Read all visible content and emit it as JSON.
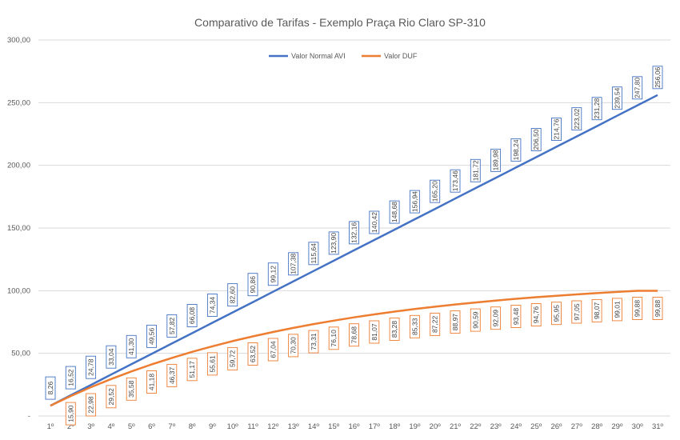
{
  "chart_data": {
    "type": "line",
    "title": "Comparativo de Tarifas - Exemplo Praça Rio Claro SP-310",
    "xlabel": "",
    "ylabel": "",
    "categories": [
      "1º",
      "2º",
      "3º",
      "4º",
      "5º",
      "6º",
      "7º",
      "8º",
      "9º",
      "10º",
      "11º",
      "12º",
      "13º",
      "14º",
      "15º",
      "16º",
      "17º",
      "18º",
      "19º",
      "20º",
      "21º",
      "22º",
      "23º",
      "24º",
      "25º",
      "26º",
      "27º",
      "28º",
      "29º",
      "30º",
      "31º"
    ],
    "ylim": [
      0,
      300
    ],
    "yticks": [
      0,
      50,
      100,
      150,
      200,
      250,
      300
    ],
    "ytick_labels": [
      "-",
      "50,00",
      "100,00",
      "150,00",
      "200,00",
      "250,00",
      "300,00"
    ],
    "grid": true,
    "legend_position": "top-center",
    "series": [
      {
        "name": "Valor Normal AVI",
        "color": "#4472C4",
        "values": [
          8.26,
          16.52,
          24.78,
          33.04,
          41.3,
          49.56,
          57.82,
          66.08,
          74.34,
          82.6,
          90.86,
          99.12,
          107.38,
          115.64,
          123.9,
          132.16,
          140.42,
          148.68,
          156.94,
          165.2,
          173.46,
          181.72,
          189.98,
          198.24,
          206.5,
          214.76,
          223.02,
          231.28,
          239.54,
          247.8,
          256.06
        ],
        "labels": [
          "8,26",
          "16,52",
          "24,78",
          "33,04",
          "41,30",
          "49,56",
          "57,82",
          "66,08",
          "74,34",
          "82,60",
          "90,86",
          "99,12",
          "107,38",
          "115,64",
          "123,90",
          "132,16",
          "140,42",
          "148,68",
          "156,94",
          "165,20",
          "173,46",
          "181,72",
          "189,98",
          "198,24",
          "206,50",
          "214,76",
          "223,02",
          "231,28",
          "239,54",
          "247,80",
          "256,06"
        ]
      },
      {
        "name": "Valor DUF",
        "color": "#ED7D31",
        "values": [
          8.26,
          15.9,
          22.98,
          29.52,
          35.58,
          41.18,
          46.37,
          51.17,
          55.61,
          59.72,
          63.52,
          67.04,
          70.3,
          73.31,
          76.1,
          78.68,
          81.07,
          83.28,
          85.33,
          87.22,
          88.97,
          90.59,
          92.09,
          93.48,
          94.76,
          95.95,
          97.05,
          98.07,
          99.01,
          99.88,
          99.88
        ],
        "labels": [
          null,
          "15,90",
          "22,98",
          "29,52",
          "35,58",
          "41,18",
          "46,37",
          "51,17",
          "55,61",
          "59,72",
          "63,52",
          "67,04",
          "70,30",
          "73,31",
          "76,10",
          "78,68",
          "81,07",
          "83,28",
          "85,33",
          "87,22",
          "88,97",
          "90,59",
          "92,09",
          "93,48",
          "94,76",
          "95,95",
          "97,05",
          "98,07",
          "99,01",
          "99,88",
          "99,88"
        ]
      }
    ]
  }
}
